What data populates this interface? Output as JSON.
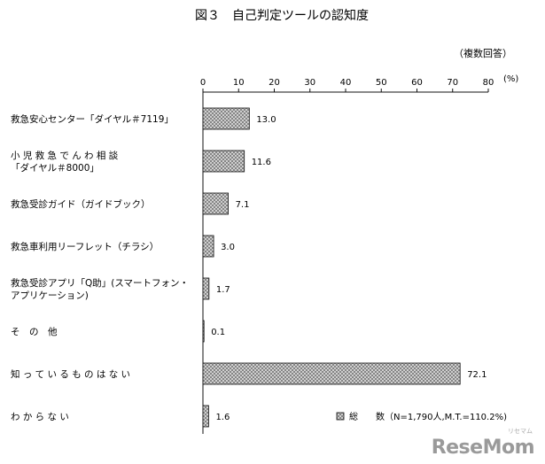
{
  "chart_data": {
    "type": "bar",
    "orientation": "horizontal",
    "title": "図３　自己判定ツールの認知度",
    "note": "（複数回答）",
    "unit": "(%)",
    "x_ticks": [
      "0",
      "10",
      "20",
      "30",
      "40",
      "50",
      "60",
      "70",
      "80"
    ],
    "xlim": [
      0,
      80
    ],
    "categories": [
      [
        "救急安心センター「ダイヤル＃7119」"
      ],
      [
        "小 児 救 急 で ん わ 相 談",
        "「ダイヤル＃8000」"
      ],
      [
        "救急受診ガイド（ガイドブック）"
      ],
      [
        "救急車利用リーフレット（チラシ）"
      ],
      [
        "救急受診アプリ「Q助」(スマートフォン・",
        "アプリケーション)"
      ],
      [
        "そ　の　他"
      ],
      [
        "知 っ て い る も の は な い"
      ],
      [
        "わ か ら な い"
      ]
    ],
    "values": [
      13.0,
      11.6,
      7.1,
      3.0,
      1.7,
      0.1,
      72.1,
      1.6
    ],
    "value_labels": [
      "13.0",
      "11.6",
      "7.1",
      "3.0",
      "1.7",
      "0.1",
      "72.1",
      "1.6"
    ],
    "legend": {
      "label": "総　　数（N=1,790人,M.T.=110.2%)",
      "placement": "bottom-right"
    },
    "bar_fill": "#bdbdbd",
    "bar_stroke": "#111111"
  },
  "watermark": {
    "text": "ReseMom",
    "subtext": "リセマム"
  }
}
